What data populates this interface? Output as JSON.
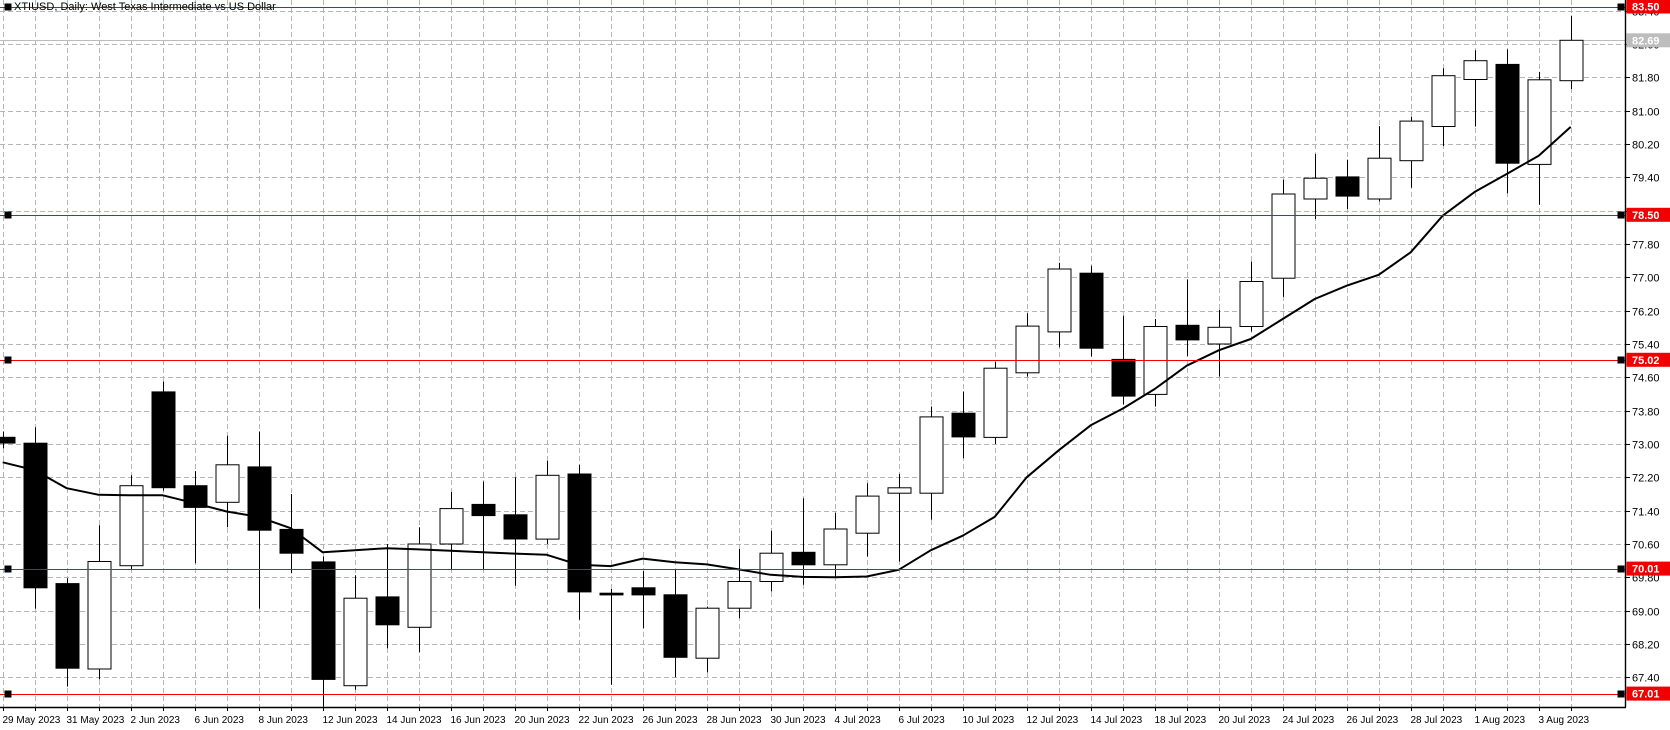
{
  "header": {
    "title": "XTIUSD, Daily:  West Texas Intermediate vs US Dollar"
  },
  "colors": {
    "background": "#ffffff",
    "bull_fill": "#ffffff",
    "bear_fill": "#000000",
    "candle_outline": "#000000",
    "wick": "#000000",
    "ma_line": "#000000",
    "grid": "#b4b4b4",
    "axis_line": "#000000",
    "axis_text": "#000000",
    "level_red": "#f00000",
    "bid_gray": "#bdbdbd",
    "badge_text": "#ffffff",
    "handle": "#000000"
  },
  "chart_data": {
    "type": "candlestick",
    "symbol": "XTIUSD",
    "timeframe": "Daily",
    "title": "XTIUSD, Daily:  West Texas Intermediate vs US Dollar",
    "axis": {
      "price_top": 83.656,
      "price_bottom": 66.688,
      "x_start": 2.7,
      "x_step": 32,
      "body_width": 23,
      "grid": true,
      "label_every": 2
    },
    "y_ticks": [
      67.4,
      68.2,
      69.0,
      69.8,
      70.6,
      71.4,
      72.2,
      73.0,
      73.8,
      74.6,
      75.4,
      76.2,
      77.0,
      77.8,
      78.6,
      79.4,
      80.2,
      81.0,
      81.8,
      82.6,
      83.4
    ],
    "x_labels": [
      "29 May 2023",
      "31 May 2023",
      "2 Jun 2023",
      "6 Jun 2023",
      "8 Jun 2023",
      "12 Jun 2023",
      "14 Jun 2023",
      "16 Jun 2023",
      "20 Jun 2023",
      "22 Jun 2023",
      "26 Jun 2023",
      "28 Jun 2023",
      "30 Jun 2023",
      "4 Jul 2023",
      "6 Jul 2023",
      "10 Jul 2023",
      "12 Jul 2023",
      "14 Jul 2023",
      "18 Jul 2023",
      "20 Jul 2023",
      "24 Jul 2023",
      "26 Jul 2023",
      "28 Jul 2023",
      "1 Aug 2023",
      "3 Aug 2023"
    ],
    "candles": [
      {
        "date": "29 May 2023",
        "o": 73.16,
        "h": 73.3,
        "l": 72.9,
        "c": 73.02
      },
      {
        "date": "30 May 2023",
        "o": 73.02,
        "h": 73.4,
        "l": 69.05,
        "c": 69.55
      },
      {
        "date": "31 May 2023",
        "o": 69.65,
        "h": 69.78,
        "l": 67.18,
        "c": 67.62
      },
      {
        "date": "1 Jun 2023",
        "o": 67.6,
        "h": 71.05,
        "l": 67.35,
        "c": 70.18
      },
      {
        "date": "2 Jun 2023",
        "o": 70.08,
        "h": 72.25,
        "l": 70.0,
        "c": 72.0
      },
      {
        "date": "5 Jun 2023",
        "o": 74.25,
        "h": 74.5,
        "l": 71.88,
        "c": 71.95
      },
      {
        "date": "6 Jun 2023",
        "o": 72.0,
        "h": 72.35,
        "l": 70.14,
        "c": 71.48
      },
      {
        "date": "7 Jun 2023",
        "o": 71.6,
        "h": 73.2,
        "l": 71.0,
        "c": 72.5
      },
      {
        "date": "8 Jun 2023",
        "o": 72.45,
        "h": 73.3,
        "l": 69.05,
        "c": 70.93
      },
      {
        "date": "9 Jun 2023",
        "o": 70.95,
        "h": 71.8,
        "l": 69.9,
        "c": 70.38
      },
      {
        "date": "12 Jun 2023",
        "o": 70.17,
        "h": 70.3,
        "l": 66.7,
        "c": 67.35
      },
      {
        "date": "13 Jun 2023",
        "o": 67.2,
        "h": 69.85,
        "l": 67.1,
        "c": 69.3
      },
      {
        "date": "14 Jun 2023",
        "o": 69.33,
        "h": 70.6,
        "l": 68.1,
        "c": 68.66
      },
      {
        "date": "15 Jun 2023",
        "o": 68.6,
        "h": 71.0,
        "l": 68.0,
        "c": 70.6
      },
      {
        "date": "16 Jun 2023",
        "o": 70.6,
        "h": 71.85,
        "l": 70.0,
        "c": 71.45
      },
      {
        "date": "19 Jun 2023",
        "o": 71.55,
        "h": 72.1,
        "l": 70.0,
        "c": 71.28
      },
      {
        "date": "20 Jun 2023",
        "o": 71.3,
        "h": 72.2,
        "l": 69.6,
        "c": 70.72
      },
      {
        "date": "21 Jun 2023",
        "o": 70.72,
        "h": 72.6,
        "l": 70.6,
        "c": 72.25
      },
      {
        "date": "22 Jun 2023",
        "o": 72.28,
        "h": 72.5,
        "l": 68.78,
        "c": 69.45
      },
      {
        "date": "23 Jun 2023",
        "o": 69.42,
        "h": 69.52,
        "l": 67.22,
        "c": 69.38
      },
      {
        "date": "26 Jun 2023",
        "o": 69.55,
        "h": 69.95,
        "l": 68.58,
        "c": 69.38
      },
      {
        "date": "27 Jun 2023",
        "o": 69.38,
        "h": 70.0,
        "l": 67.4,
        "c": 67.88
      },
      {
        "date": "28 Jun 2023",
        "o": 67.86,
        "h": 69.1,
        "l": 67.52,
        "c": 69.06
      },
      {
        "date": "29 Jun 2023",
        "o": 69.06,
        "h": 70.48,
        "l": 68.82,
        "c": 69.7
      },
      {
        "date": "30 Jun 2023",
        "o": 69.7,
        "h": 70.92,
        "l": 69.46,
        "c": 70.38
      },
      {
        "date": "3 Jul 2023",
        "o": 70.4,
        "h": 71.7,
        "l": 69.62,
        "c": 70.1
      },
      {
        "date": "4 Jul 2023",
        "o": 70.1,
        "h": 71.35,
        "l": 69.82,
        "c": 70.96
      },
      {
        "date": "5 Jul 2023",
        "o": 70.86,
        "h": 72.06,
        "l": 70.3,
        "c": 71.75
      },
      {
        "date": "6 Jul 2023",
        "o": 71.82,
        "h": 72.28,
        "l": 70.18,
        "c": 71.95
      },
      {
        "date": "7 Jul 2023",
        "o": 71.82,
        "h": 73.9,
        "l": 71.18,
        "c": 73.65
      },
      {
        "date": "10 Jul 2023",
        "o": 73.74,
        "h": 74.26,
        "l": 72.66,
        "c": 73.17
      },
      {
        "date": "11 Jul 2023",
        "o": 73.16,
        "h": 74.97,
        "l": 73.0,
        "c": 74.82
      },
      {
        "date": "12 Jul 2023",
        "o": 74.71,
        "h": 76.14,
        "l": 74.62,
        "c": 75.83
      },
      {
        "date": "13 Jul 2023",
        "o": 75.69,
        "h": 77.35,
        "l": 75.32,
        "c": 77.2
      },
      {
        "date": "14 Jul 2023",
        "o": 77.1,
        "h": 77.28,
        "l": 75.1,
        "c": 75.3
      },
      {
        "date": "17 Jul 2023",
        "o": 75.03,
        "h": 76.08,
        "l": 73.95,
        "c": 74.15
      },
      {
        "date": "18 Jul 2023",
        "o": 74.19,
        "h": 76.0,
        "l": 73.9,
        "c": 75.82
      },
      {
        "date": "19 Jul 2023",
        "o": 75.85,
        "h": 76.95,
        "l": 75.11,
        "c": 75.5
      },
      {
        "date": "20 Jul 2023",
        "o": 75.4,
        "h": 76.22,
        "l": 74.62,
        "c": 75.8
      },
      {
        "date": "21 Jul 2023",
        "o": 75.82,
        "h": 77.38,
        "l": 75.7,
        "c": 76.9
      },
      {
        "date": "24 Jul 2023",
        "o": 76.98,
        "h": 79.34,
        "l": 76.53,
        "c": 79.0
      },
      {
        "date": "25 Jul 2023",
        "o": 78.88,
        "h": 79.96,
        "l": 78.4,
        "c": 79.38
      },
      {
        "date": "26 Jul 2023",
        "o": 79.41,
        "h": 79.82,
        "l": 78.64,
        "c": 78.95
      },
      {
        "date": "27 Jul 2023",
        "o": 78.88,
        "h": 80.63,
        "l": 78.82,
        "c": 79.86
      },
      {
        "date": "28 Jul 2023",
        "o": 79.8,
        "h": 80.85,
        "l": 79.15,
        "c": 80.75
      },
      {
        "date": "31 Jul 2023",
        "o": 80.62,
        "h": 82.02,
        "l": 80.15,
        "c": 81.84
      },
      {
        "date": "1 Aug 2023",
        "o": 81.75,
        "h": 82.45,
        "l": 80.62,
        "c": 82.2
      },
      {
        "date": "2 Aug 2023",
        "o": 82.11,
        "h": 82.47,
        "l": 79.02,
        "c": 79.74
      },
      {
        "date": "3 Aug 2023",
        "o": 79.71,
        "h": 81.93,
        "l": 78.74,
        "c": 81.74
      },
      {
        "date": "4 Aug 2023",
        "o": 81.72,
        "h": 83.28,
        "l": 81.52,
        "c": 82.69
      }
    ],
    "ma": [
      72.56,
      72.37,
      71.94,
      71.78,
      71.77,
      71.77,
      71.58,
      71.38,
      71.25,
      70.98,
      70.4,
      70.45,
      70.5,
      70.47,
      70.44,
      70.4,
      70.37,
      70.34,
      70.1,
      70.07,
      70.25,
      70.16,
      70.11,
      69.99,
      69.86,
      69.81,
      69.8,
      69.82,
      69.98,
      70.45,
      70.8,
      71.25,
      72.2,
      72.85,
      73.45,
      73.85,
      74.32,
      74.88,
      75.25,
      75.52,
      76.0,
      76.48,
      76.8,
      77.06,
      77.6,
      78.48,
      79.05,
      79.48,
      79.92,
      80.61
    ],
    "price_lines": [
      {
        "price": 83.5,
        "label": "83.50"
      },
      {
        "price": 78.5,
        "label": "78.50"
      },
      {
        "price": 75.02,
        "label": "75.02"
      },
      {
        "price": 70.01,
        "label": "70.01"
      },
      {
        "price": 67.01,
        "label": "67.01"
      }
    ],
    "bid": {
      "price": 82.69,
      "label": "82.69"
    }
  }
}
